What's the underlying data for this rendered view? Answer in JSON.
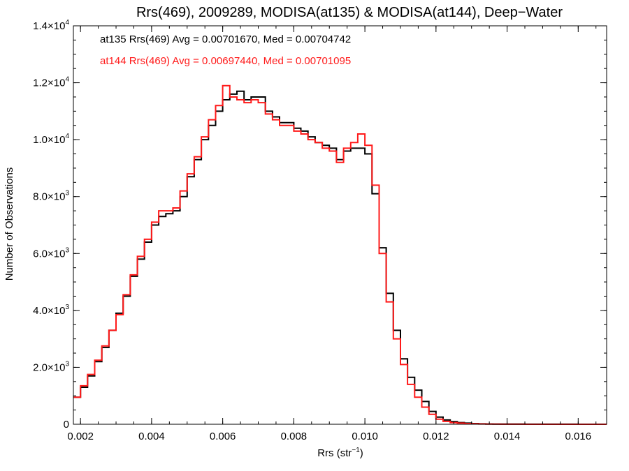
{
  "chart_data": {
    "type": "line",
    "title": "Rrs(469), 2009289, MODISA(at135) & MODISA(at144), Deep−Water",
    "xlabel": "Rrs (str",
    "xlabel_sup": "−1",
    "xlabel_close": ")",
    "ylabel": "Number of Observations",
    "xlim": [
      0.0018,
      0.0168
    ],
    "ylim": [
      0,
      14000
    ],
    "grid": false,
    "legend_placement": "top-left",
    "x_ticks": [
      {
        "value": 0.002,
        "label": "0.002"
      },
      {
        "value": 0.004,
        "label": "0.004"
      },
      {
        "value": 0.006,
        "label": "0.006"
      },
      {
        "value": 0.008,
        "label": "0.008"
      },
      {
        "value": 0.01,
        "label": "0.010"
      },
      {
        "value": 0.012,
        "label": "0.012"
      },
      {
        "value": 0.014,
        "label": "0.014"
      },
      {
        "value": 0.016,
        "label": "0.016"
      }
    ],
    "y_ticks": [
      {
        "value": 0,
        "mantissa": "0",
        "exp": ""
      },
      {
        "value": 2000,
        "mantissa": "2.0×10",
        "exp": "3"
      },
      {
        "value": 4000,
        "mantissa": "4.0×10",
        "exp": "3"
      },
      {
        "value": 6000,
        "mantissa": "6.0×10",
        "exp": "3"
      },
      {
        "value": 8000,
        "mantissa": "8.0×10",
        "exp": "3"
      },
      {
        "value": 10000,
        "mantissa": "1.0×10",
        "exp": "4"
      },
      {
        "value": 12000,
        "mantissa": "1.2×10",
        "exp": "4"
      },
      {
        "value": 14000,
        "mantissa": "1.4×10",
        "exp": "4"
      }
    ],
    "series": [
      {
        "legend": "at135 Rrs(469) Avg = 0.00701670, Med = 0.00704742",
        "color": "#000000",
        "x": [
          0.0018,
          0.002,
          0.0022,
          0.0024,
          0.0026,
          0.0028,
          0.003,
          0.0032,
          0.0034,
          0.0036,
          0.0038,
          0.004,
          0.0042,
          0.0044,
          0.0046,
          0.0048,
          0.005,
          0.0052,
          0.0054,
          0.0056,
          0.0058,
          0.006,
          0.0062,
          0.0064,
          0.0066,
          0.0068,
          0.007,
          0.0072,
          0.0074,
          0.0076,
          0.0078,
          0.008,
          0.0082,
          0.0084,
          0.0086,
          0.0088,
          0.009,
          0.0092,
          0.0094,
          0.0096,
          0.0098,
          0.01,
          0.0102,
          0.0104,
          0.0106,
          0.0108,
          0.011,
          0.0112,
          0.0114,
          0.0116,
          0.0118,
          0.012,
          0.0122,
          0.0124,
          0.0126,
          0.0128,
          0.013,
          0.0132,
          0.0134,
          0.0136,
          0.0138,
          0.014,
          0.0145,
          0.015,
          0.016,
          0.0168
        ],
        "y": [
          950,
          1300,
          1700,
          2200,
          2700,
          3300,
          3900,
          4500,
          5200,
          5800,
          6400,
          7000,
          7300,
          7400,
          7500,
          8000,
          8700,
          9300,
          10000,
          10500,
          11000,
          11400,
          11600,
          11700,
          11400,
          11500,
          11500,
          11000,
          10800,
          10600,
          10600,
          10400,
          10300,
          10100,
          9900,
          9800,
          9700,
          9300,
          9600,
          9700,
          9700,
          9500,
          8100,
          6200,
          4600,
          3300,
          2300,
          1650,
          1200,
          800,
          450,
          250,
          150,
          90,
          60,
          40,
          25,
          15,
          10,
          8,
          5,
          4,
          3,
          2,
          1,
          0
        ]
      },
      {
        "legend": "at144 Rrs(469) Avg = 0.00697440, Med = 0.00701095",
        "color": "#ff1a1a",
        "x": [
          0.0018,
          0.002,
          0.0022,
          0.0024,
          0.0026,
          0.0028,
          0.003,
          0.0032,
          0.0034,
          0.0036,
          0.0038,
          0.004,
          0.0042,
          0.0044,
          0.0046,
          0.0048,
          0.005,
          0.0052,
          0.0054,
          0.0056,
          0.0058,
          0.006,
          0.0062,
          0.0064,
          0.0066,
          0.0068,
          0.007,
          0.0072,
          0.0074,
          0.0076,
          0.0078,
          0.008,
          0.0082,
          0.0084,
          0.0086,
          0.0088,
          0.009,
          0.0092,
          0.0094,
          0.0096,
          0.0098,
          0.01,
          0.0102,
          0.0104,
          0.0106,
          0.0108,
          0.011,
          0.0112,
          0.0114,
          0.0116,
          0.0118,
          0.012,
          0.0122,
          0.0124,
          0.0126,
          0.0128,
          0.013,
          0.0132,
          0.0134,
          0.0136,
          0.0138,
          0.014,
          0.0145,
          0.015,
          0.016,
          0.0168
        ],
        "y": [
          950,
          1350,
          1750,
          2250,
          2750,
          3300,
          3850,
          4550,
          5250,
          5900,
          6500,
          7100,
          7500,
          7500,
          7600,
          8200,
          8800,
          9400,
          10100,
          10700,
          11200,
          11900,
          11500,
          11400,
          11300,
          11400,
          11300,
          10900,
          10700,
          10500,
          10500,
          10300,
          10200,
          10000,
          9900,
          9700,
          9600,
          9200,
          9700,
          9900,
          10200,
          9800,
          8400,
          6000,
          4300,
          3000,
          2100,
          1400,
          950,
          600,
          350,
          180,
          100,
          60,
          40,
          25,
          15,
          10,
          6,
          4,
          3,
          2,
          1,
          1,
          0,
          0
        ]
      }
    ]
  }
}
